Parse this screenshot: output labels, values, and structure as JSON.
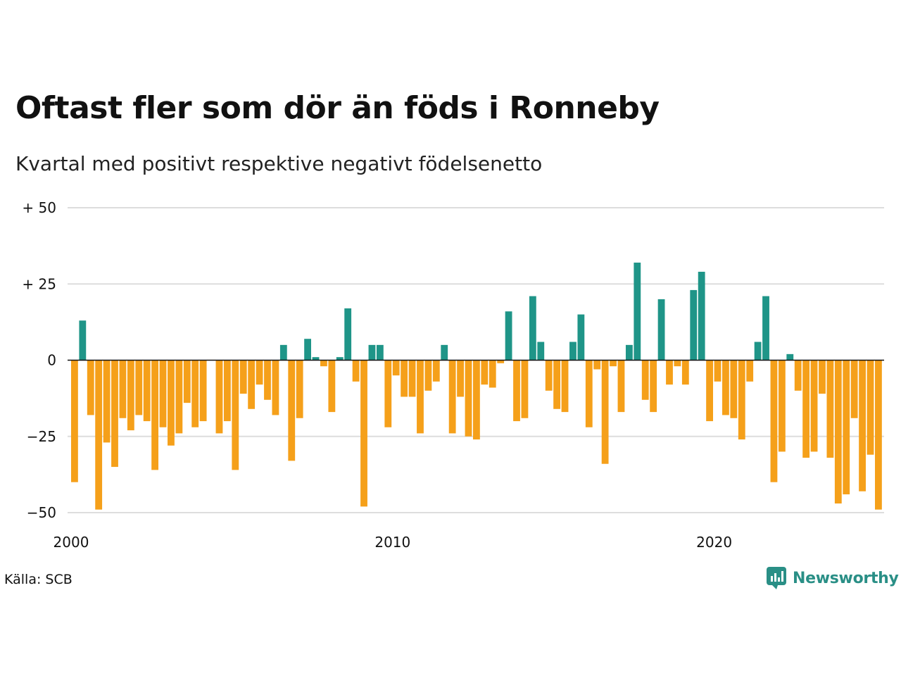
{
  "header": {
    "title": "Oftast fler som dör än föds i Ronneby",
    "subtitle": "Kvartal med positivt respektive negativt födelsenetto"
  },
  "footer": {
    "source": "Källa: SCB",
    "brand": "Newsworthy"
  },
  "colors": {
    "positive": "#1f9588",
    "negative": "#f5a01a",
    "grid": "#dddddd",
    "zero_line": "#111111",
    "brand": "#2a8f86"
  },
  "chart_data": {
    "type": "bar",
    "start": "2000 Q1",
    "frequency": "quarterly",
    "values": [
      -40,
      13,
      -18,
      -49,
      -27,
      -35,
      -19,
      -23,
      -18,
      -20,
      -36,
      -22,
      -28,
      -24,
      -14,
      -22,
      -20,
      0,
      -24,
      -20,
      -36,
      -11,
      -16,
      -8,
      -13,
      -18,
      5,
      -33,
      -19,
      7,
      1,
      -2,
      -17,
      1,
      17,
      -7,
      -48,
      5,
      5,
      -22,
      -5,
      -12,
      -12,
      -24,
      -10,
      -7,
      5,
      -24,
      -12,
      -25,
      -26,
      -8,
      -9,
      -1,
      16,
      -20,
      -19,
      21,
      6,
      -10,
      -16,
      -17,
      6,
      15,
      -22,
      -3,
      -34,
      -2,
      -17,
      5,
      32,
      -13,
      -17,
      20,
      -8,
      -2,
      -8,
      23,
      29,
      -20,
      -7,
      -18,
      -19,
      -26,
      -7,
      6,
      21,
      -40,
      -30,
      2,
      -10,
      -32,
      -30,
      -11,
      -32,
      -47,
      -44,
      -19,
      -43,
      -31,
      -49
    ],
    "y_ticks": [
      {
        "value": 50,
        "label": "+ 50"
      },
      {
        "value": 25,
        "label": "+ 25"
      },
      {
        "value": 0,
        "label": "0"
      },
      {
        "value": -25,
        "label": "−25"
      },
      {
        "value": -50,
        "label": "−50"
      }
    ],
    "x_ticks": [
      {
        "value": 2000,
        "label": "2000"
      },
      {
        "value": 2010,
        "label": "2010"
      },
      {
        "value": 2020,
        "label": "2020"
      }
    ],
    "ylim": [
      -50,
      50
    ],
    "grid": true
  }
}
